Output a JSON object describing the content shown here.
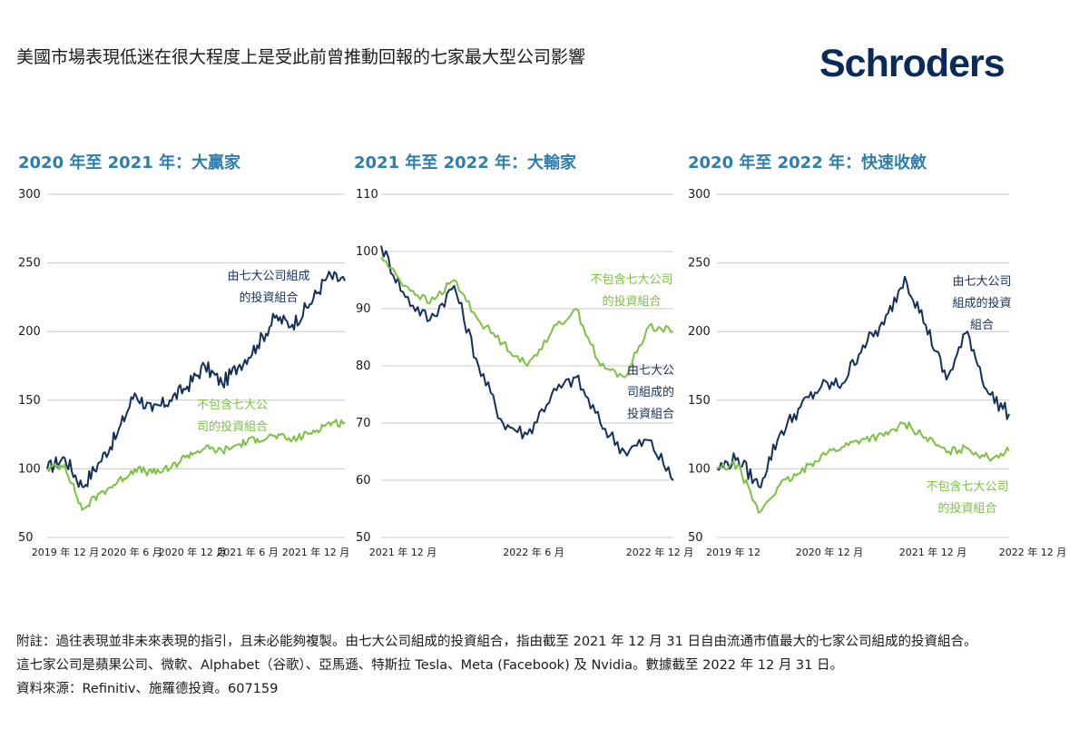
{
  "header": {
    "title": "美國市場表現低迷在很大程度上是受此前曾推動回報的七家最大型公司影響",
    "brand": "Schroders"
  },
  "colors": {
    "navy": "#13305c",
    "green": "#7cc142",
    "title_blue": "#2e7daa"
  },
  "chart_data": [
    {
      "type": "line",
      "title": "2020 年至 2021 年：大贏家",
      "ylim": [
        50,
        300
      ],
      "yticks": [
        "300",
        "250",
        "200",
        "150",
        "100",
        "50"
      ],
      "xticks": [
        "2019 年 12 月",
        "2020 年 6 月",
        "2020 年 12 月",
        "2021 年 6 月",
        "2021 年 12 月"
      ],
      "x": [
        "2019-12",
        "2020-02",
        "2020-03",
        "2020-04",
        "2020-06",
        "2020-08",
        "2020-09",
        "2020-10",
        "2020-12",
        "2021-02",
        "2021-03",
        "2021-05",
        "2021-06",
        "2021-08",
        "2021-09",
        "2021-10",
        "2021-11",
        "2021-12"
      ],
      "series": [
        {
          "name": "由七大公司組成的投資組合",
          "color": "#13305c",
          "values": [
            100,
            108,
            87,
            105,
            125,
            155,
            142,
            150,
            160,
            175,
            162,
            176,
            190,
            210,
            205,
            220,
            240,
            237
          ]
        },
        {
          "name": "不包含七大公司的投資組合",
          "color": "#7cc142",
          "values": [
            100,
            103,
            70,
            82,
            90,
            100,
            97,
            100,
            110,
            115,
            113,
            118,
            122,
            124,
            121,
            126,
            133,
            134
          ]
        }
      ],
      "annotations": [
        {
          "lines": [
            "由七大公司組成",
            "的投資組合"
          ],
          "series": 0
        },
        {
          "lines": [
            "不包含七大公",
            "司的投資組合"
          ],
          "series": 1
        }
      ]
    },
    {
      "type": "line",
      "title": "2021 年至 2022 年：大輸家",
      "ylim": [
        50,
        110
      ],
      "yticks": [
        "110",
        "100",
        "90",
        "80",
        "70",
        "60",
        "50"
      ],
      "xticks": [
        "2021 年 12 月",
        "2022 年 6 月",
        "2022 年 12 月"
      ],
      "x": [
        "2021-12",
        "2022-01",
        "2022-02",
        "2022-03",
        "2022-04",
        "2022-05",
        "2022-06",
        "2022-07",
        "2022-08",
        "2022-09",
        "2022-10",
        "2022-11",
        "2022-12"
      ],
      "series": [
        {
          "name": "由七大公司組成的投資組合",
          "color": "#13305c",
          "values": [
            101,
            92,
            88,
            94,
            80,
            70,
            68,
            75,
            78,
            70,
            65,
            67,
            60
          ]
        },
        {
          "name": "不包含七大公司的投資組合",
          "color": "#7cc142",
          "values": [
            99,
            94,
            91,
            95,
            88,
            84,
            80,
            86,
            90,
            80,
            78,
            87,
            86
          ]
        }
      ],
      "annotations": [
        {
          "lines": [
            "不包含七大公司",
            "的投資組合"
          ],
          "series": 1
        },
        {
          "lines": [
            "由七大公",
            "司組成的",
            "投資組合"
          ],
          "series": 0
        }
      ]
    },
    {
      "type": "line",
      "title": "2020 年至 2022 年：快速收斂",
      "ylim": [
        50,
        300
      ],
      "yticks": [
        "300",
        "250",
        "200",
        "150",
        "100",
        "50"
      ],
      "xticks": [
        "2019 年 12",
        "2020 年 12 月",
        "2021 年 12 月",
        "2022 年 12 月"
      ],
      "x": [
        "2019-12",
        "2020-02",
        "2020-03",
        "2020-06",
        "2020-09",
        "2020-12",
        "2021-03",
        "2021-06",
        "2021-09",
        "2021-12",
        "2022-03",
        "2022-06",
        "2022-08",
        "2022-10",
        "2022-12"
      ],
      "series": [
        {
          "name": "由七大公司組成的投資組合",
          "color": "#13305c",
          "values": [
            100,
            108,
            87,
            125,
            145,
            160,
            162,
            190,
            205,
            240,
            205,
            165,
            200,
            155,
            140
          ]
        },
        {
          "name": "不包含七大公司的投資組合",
          "color": "#7cc142",
          "values": [
            100,
            103,
            68,
            88,
            97,
            110,
            116,
            122,
            124,
            133,
            123,
            112,
            115,
            108,
            113
          ]
        }
      ],
      "annotations": [
        {
          "lines": [
            "由七大公司",
            "組成的投資",
            "組合"
          ],
          "series": 0
        },
        {
          "lines": [
            "不包含七大公司",
            "的投資組合"
          ],
          "series": 1
        }
      ]
    }
  ],
  "footer": {
    "note": "附註：過往表現並非未來表現的指引，且未必能夠複製。由七大公司組成的投資組合，指由截至 2021 年 12 月 31 日自由流通市值最大的七家公司組成的投資組合。這七家公司是蘋果公司、微軟、Alphabet（谷歌）、亞馬遜、特斯拉 Tesla、Meta (Facebook) 及 Nvidia。數據截至 2022 年 12 月 31 日。",
    "source": "資料來源：Refinitiv、施羅德投資。607159"
  }
}
